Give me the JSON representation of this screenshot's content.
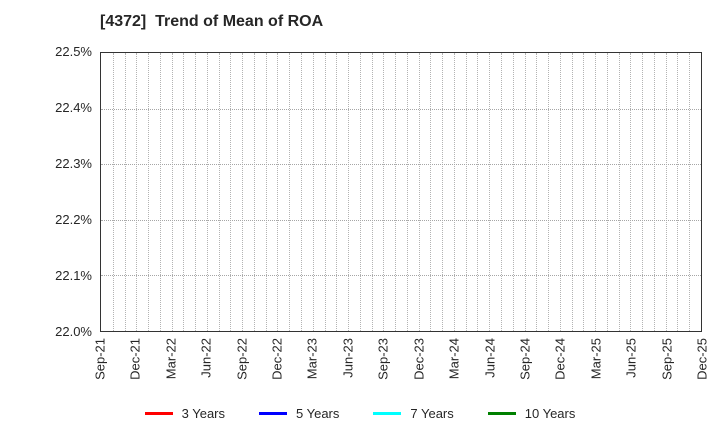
{
  "chart_data": {
    "type": "line",
    "title": "[4372]  Trend of Mean of ROA",
    "xlabel": "",
    "ylabel": "",
    "ylim": [
      22.0,
      22.5
    ],
    "y_ticks": [
      22.0,
      22.1,
      22.2,
      22.3,
      22.4,
      22.5
    ],
    "y_tick_labels": [
      "22.0%",
      "22.1%",
      "22.2%",
      "22.3%",
      "22.4%",
      "22.5%"
    ],
    "x_tick_labels": [
      "Sep-21",
      "Dec-21",
      "Mar-22",
      "Jun-22",
      "Sep-22",
      "Dec-22",
      "Mar-23",
      "Jun-23",
      "Sep-23",
      "Dec-23",
      "Mar-24",
      "Jun-24",
      "Sep-24",
      "Dec-24",
      "Mar-25",
      "Jun-25",
      "Sep-25",
      "Dec-25"
    ],
    "months_per_tick": 3,
    "grid": true,
    "legend_position": "bottom",
    "series": [
      {
        "name": "3 Years",
        "color": "#ff0000",
        "values": []
      },
      {
        "name": "5 Years",
        "color": "#0000ff",
        "values": []
      },
      {
        "name": "7 Years",
        "color": "#00ffff",
        "values": []
      },
      {
        "name": "10 Years",
        "color": "#008000",
        "values": []
      }
    ],
    "note": "Plot area is empty: no series data points are visible within the displayed y-range."
  },
  "colors": {
    "text": "#262626",
    "axis_border": "#333333",
    "gridline": "#b3b3b3",
    "background": "#ffffff"
  }
}
